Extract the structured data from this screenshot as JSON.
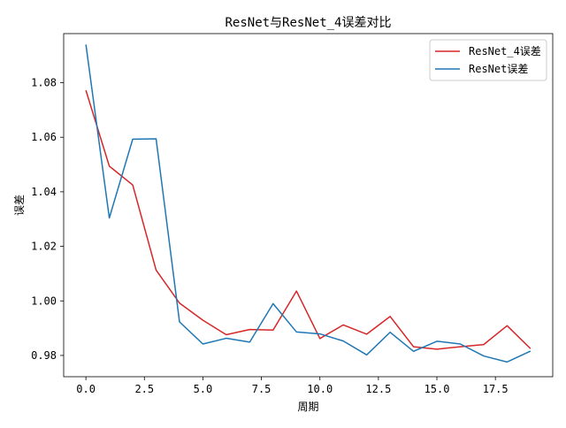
{
  "chart_data": {
    "type": "line",
    "title": "ResNet与ResNet_4误差对比",
    "xlabel": "周期",
    "ylabel": "误差",
    "xlim": [
      -0.95,
      19.95
    ],
    "ylim": [
      0.9722,
      1.098
    ],
    "xticks": [
      0.0,
      2.5,
      5.0,
      7.5,
      10.0,
      12.5,
      15.0,
      17.5
    ],
    "xtick_labels": [
      "0.0",
      "2.5",
      "5.0",
      "7.5",
      "10.0",
      "12.5",
      "15.0",
      "17.5"
    ],
    "yticks": [
      0.98,
      1.0,
      1.02,
      1.04,
      1.06,
      1.08
    ],
    "ytick_labels": [
      "0.98",
      "1.00",
      "1.02",
      "1.04",
      "1.06",
      "1.08"
    ],
    "grid": false,
    "legend_position": "top-right",
    "x": [
      0,
      1,
      2,
      3,
      4,
      5,
      6,
      7,
      8,
      9,
      10,
      11,
      12,
      13,
      14,
      15,
      16,
      17,
      18,
      19
    ],
    "series": [
      {
        "name": "ResNet_4误差",
        "color": "#d62728",
        "values": [
          1.0772,
          1.0494,
          1.0425,
          1.0113,
          0.9992,
          0.9929,
          0.9876,
          0.9895,
          0.9893,
          1.0036,
          0.9862,
          0.9912,
          0.9878,
          0.9943,
          0.9832,
          0.9823,
          0.9832,
          0.984,
          0.9909,
          0.9825
        ]
      },
      {
        "name": "ResNet误差",
        "color": "#1f77b4",
        "values": [
          1.094,
          1.0304,
          1.0593,
          1.0594,
          0.9923,
          0.9842,
          0.9863,
          0.9849,
          0.999,
          0.9886,
          0.9879,
          0.9853,
          0.9802,
          0.9885,
          0.9815,
          0.9852,
          0.9842,
          0.9798,
          0.9776,
          0.9816
        ]
      }
    ]
  }
}
